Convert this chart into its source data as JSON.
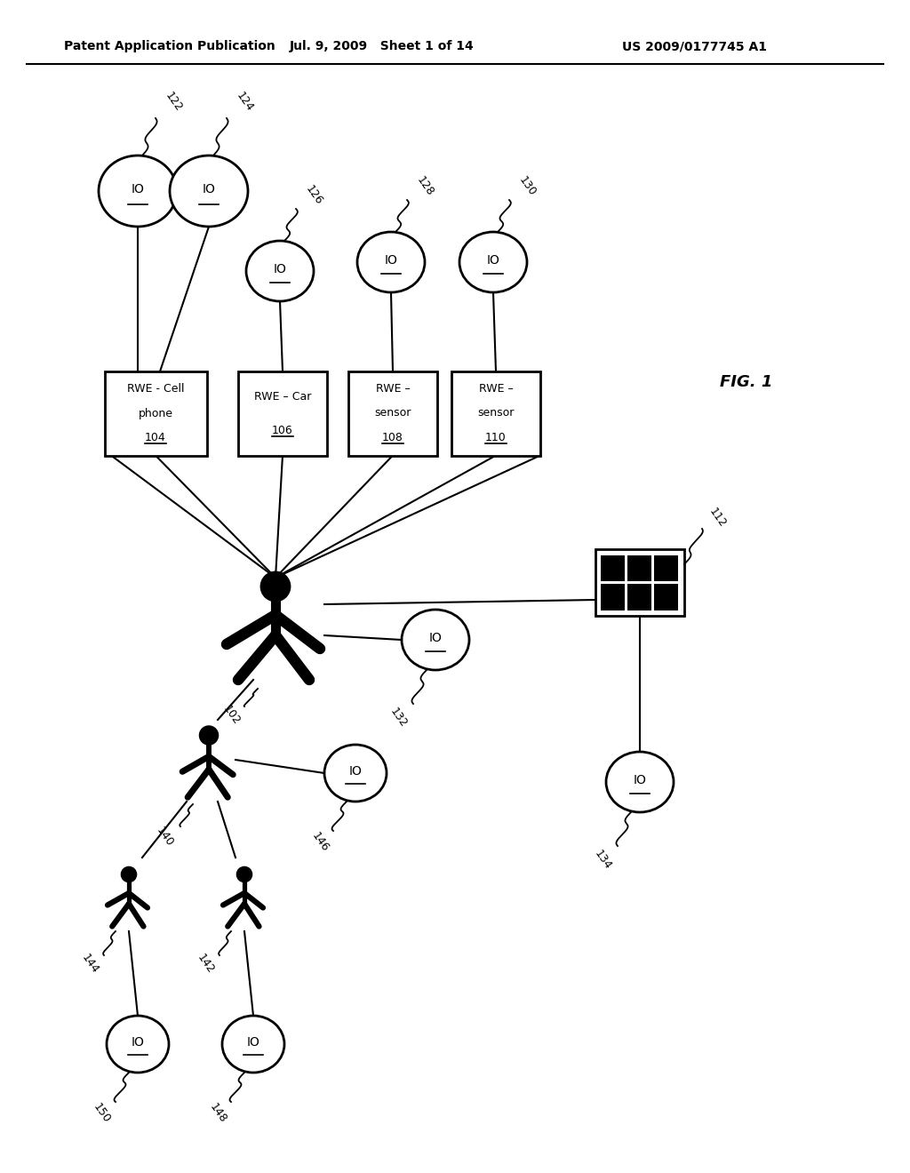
{
  "header_left": "Patent Application Publication",
  "header_mid": "Jul. 9, 2009   Sheet 1 of 14",
  "header_right": "US 2009/0177745 A1",
  "fig_label": "FIG. 1",
  "bg_color": "#ffffff"
}
